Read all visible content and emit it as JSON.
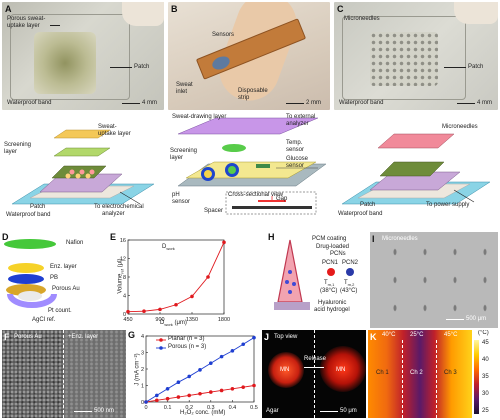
{
  "panels": {
    "A": {
      "label": "A",
      "porous": "Porous sweat-",
      "porous2": "uptake layer",
      "patch": "Patch",
      "band": "Waterproof band",
      "scale": "4 mm"
    },
    "B": {
      "label": "B",
      "sensors": "Sensors",
      "inlet": "Sweat",
      "inlet2": "inlet",
      "strip": "Disposable",
      "strip2": "strip",
      "scale": "2 mm"
    },
    "C": {
      "label": "C",
      "micro": "Microneedles",
      "patch": "Patch",
      "band": "Waterproof band",
      "scale": "4 mm"
    },
    "A2": {
      "screening": "Screening",
      "screening2": "layer",
      "uptake": "Sweat-",
      "uptake2": "uptake layer",
      "patch": "Patch",
      "band": "Waterproof band",
      "to": "To electrochemical",
      "to2": "analyzer"
    },
    "B2": {
      "drawing": "Sweat-drawing layer",
      "external": "To external",
      "external2": "analyzer",
      "temp": "Temp.",
      "temp2": "sensor",
      "screening": "Screening",
      "screening2": "layer",
      "glucose": "Glucose",
      "glucose2": "sensor",
      "cross": "Cross-sectional view",
      "gap": "Gap",
      "ph": "pH",
      "ph2": "sensor",
      "spacer": "Spacer"
    },
    "C2": {
      "micro": "Microneedles",
      "patch": "Patch",
      "power": "To power supply",
      "band": "Waterproof band"
    },
    "D": {
      "label": "D",
      "nafion": "Nafion",
      "enz": "Enz. layer",
      "pb": "PB",
      "au": "Porous Au",
      "pt": "Pt count.",
      "agcl": "AgCl ref."
    },
    "E": {
      "label": "E",
      "dwork": "D",
      "dwork_sub": "work",
      "ylabel": "Volume",
      "ylabel_sub": "ref",
      "ylabel_unit": "(μl)",
      "xlabel": "D",
      "xlabel_sub": "work",
      "xlabel_unit": "(μm)"
    },
    "F": {
      "label": "F",
      "porous": "Porous Au",
      "enz": "+Enz. layer",
      "scale": "500 nm"
    },
    "G": {
      "label": "G",
      "ylabel": "J (mA cm⁻²)",
      "xlabel": "H₂O₂ conc. (mM)",
      "legend_planar": "Planar (n = 3)",
      "legend_porous": "Porous (n = 3)"
    },
    "H": {
      "label": "H",
      "pcm": "PCM coating",
      "drug": "Drug-loaded",
      "drug2": "PCNs",
      "pcn1": "PCN1",
      "pcn2": "PCN2",
      "tm1": "T",
      "tm1_sub": "m,1",
      "tm1_val": "(38°C)",
      "tm2": "T",
      "tm2_sub": "m,2",
      "tm2_val": "(43°C)",
      "ha": "Hyaluronic",
      "ha2": "acid hydrogel"
    },
    "I": {
      "label": "I",
      "title": "Microneedles",
      "scale": "500 μm"
    },
    "J": {
      "label": "J",
      "top": "Top view",
      "mn1": "MN",
      "release": "Release",
      "mn2": "MN",
      "agar": "Agar",
      "scale": "50 μm"
    },
    "K": {
      "label": "K",
      "t1": "40°C",
      "t2": "25°C",
      "t3": "45°C",
      "ch1": "Ch 1",
      "ch2": "Ch 2",
      "ch3": "Ch 3",
      "unit": "(°C)",
      "scale_ticks": [
        "45",
        "40",
        "35",
        "30",
        "25"
      ]
    }
  },
  "chart_data": [
    {
      "type": "line",
      "title": "",
      "xlabel": "Dwork (μm)",
      "ylabel": "Volumeref (μl)",
      "categories": [
        "450",
        "900",
        "1350",
        "1800"
      ],
      "x": [
        450,
        675,
        900,
        1125,
        1350,
        1575,
        1800
      ],
      "series": [
        {
          "name": "",
          "values": [
            0.5,
            0.6,
            1.0,
            2.0,
            3.8,
            8.0,
            15.5
          ],
          "color": "#e0191e"
        }
      ],
      "ylim": [
        0,
        16
      ],
      "yticks": [
        "0",
        "4",
        "8",
        "12",
        "16"
      ],
      "xticks": [
        "450",
        "900",
        "1350",
        "1800"
      ]
    },
    {
      "type": "line",
      "title": "",
      "xlabel": "H₂O₂ conc. (mM)",
      "ylabel": "J (mA cm⁻²)",
      "x": [
        0,
        0.05,
        0.1,
        0.15,
        0.2,
        0.25,
        0.3,
        0.35,
        0.4,
        0.45,
        0.5
      ],
      "series": [
        {
          "name": "Planar (n = 3)",
          "values": [
            0,
            0.1,
            0.2,
            0.3,
            0.4,
            0.5,
            0.6,
            0.7,
            0.8,
            0.9,
            1.0
          ],
          "color": "#e0191e"
        },
        {
          "name": "Porous (n = 3)",
          "values": [
            0,
            0.4,
            0.8,
            1.2,
            1.55,
            1.95,
            2.35,
            2.75,
            3.1,
            3.5,
            3.9
          ],
          "color": "#1f3fd1"
        }
      ],
      "ylim": [
        0,
        4
      ],
      "yticks": [
        "0",
        "1",
        "2",
        "3",
        "4"
      ],
      "xticks": [
        "0",
        "0.1",
        "0.2",
        "0.3",
        "0.4",
        "0.5"
      ]
    }
  ]
}
